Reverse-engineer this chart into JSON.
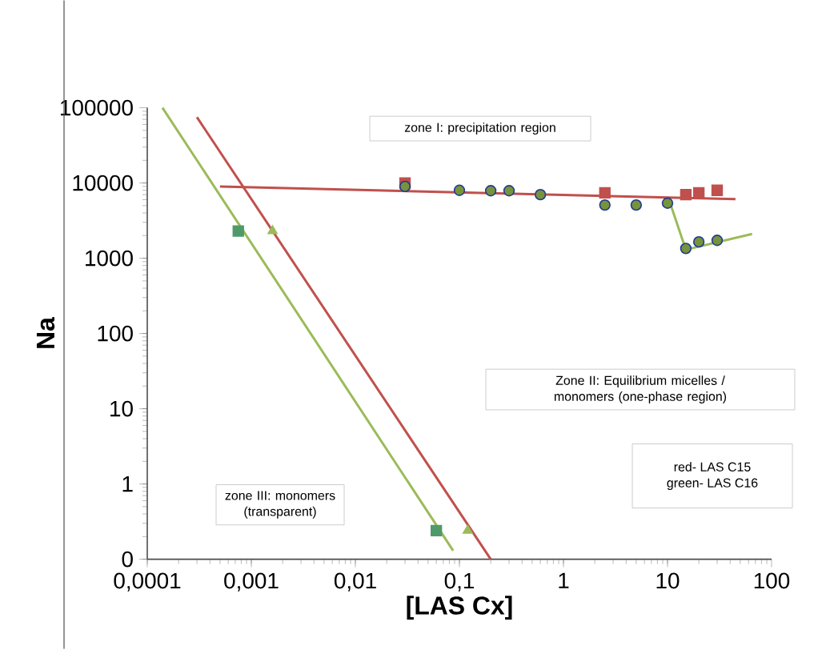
{
  "chart_data": {
    "type": "scatter",
    "log": "xy",
    "xlabel": "[LAS Cx]",
    "ylabel": "Na",
    "xlim": [
      0.0001,
      100
    ],
    "ylim": [
      0.1,
      100000
    ],
    "xticks": [
      {
        "value": 0.0001,
        "label": "0,0001"
      },
      {
        "value": 0.001,
        "label": "0,001"
      },
      {
        "value": 0.01,
        "label": "0,01"
      },
      {
        "value": 0.1,
        "label": "0,1"
      },
      1,
      10,
      100
    ],
    "yticks": [
      {
        "value": 0.1,
        "label": "0"
      },
      1,
      10,
      100,
      1000,
      10000,
      100000
    ],
    "annotations": [
      "zone I: precipitation region",
      "Zone II: Equilibrium micelles / monomers (one-phase region)",
      "zone III: monomers (transparent)",
      "red- LAS C15",
      "green- LAS C16"
    ],
    "series": [
      {
        "type": "line",
        "color": "#c0504d",
        "marker": "none",
        "x": [
          0.0005,
          45
        ],
        "values": [
          9000,
          6100
        ]
      },
      {
        "type": "line",
        "color": "#c0504d",
        "marker": "none",
        "x": [
          0.0003,
          0.2
        ],
        "values": [
          75000,
          0.1
        ]
      },
      {
        "type": "line",
        "color": "#9bbb59",
        "marker": "none",
        "x": [
          0.00014,
          0.087
        ],
        "values": [
          100000,
          0.13
        ]
      },
      {
        "type": "line",
        "color": "#9bbb59",
        "marker": "none",
        "x": [
          10.5,
          15,
          65
        ],
        "values": [
          5600,
          1300,
          2100
        ]
      },
      {
        "color": "#c0504d",
        "marker": "square",
        "x": [
          0.03,
          2.5,
          15,
          20,
          30
        ],
        "values": [
          10000,
          7400,
          7000,
          7400,
          8000
        ]
      },
      {
        "color": "#4f9a6a",
        "marker": "square",
        "x": [
          0.00075,
          0.06
        ],
        "values": [
          2300,
          0.24
        ]
      },
      {
        "color": "#9bbb59",
        "marker": "triangle",
        "x": [
          0.0016,
          0.12
        ],
        "values": [
          2300,
          0.24
        ]
      },
      {
        "color": "#77933c",
        "marker": "circle",
        "x": [
          0.03,
          0.1,
          0.2,
          0.3,
          0.6,
          2.5,
          5,
          10,
          15,
          20,
          30
        ],
        "values": [
          9000,
          8000,
          7900,
          7900,
          7000,
          5100,
          5100,
          5400,
          1350,
          1650,
          1730
        ]
      }
    ]
  }
}
